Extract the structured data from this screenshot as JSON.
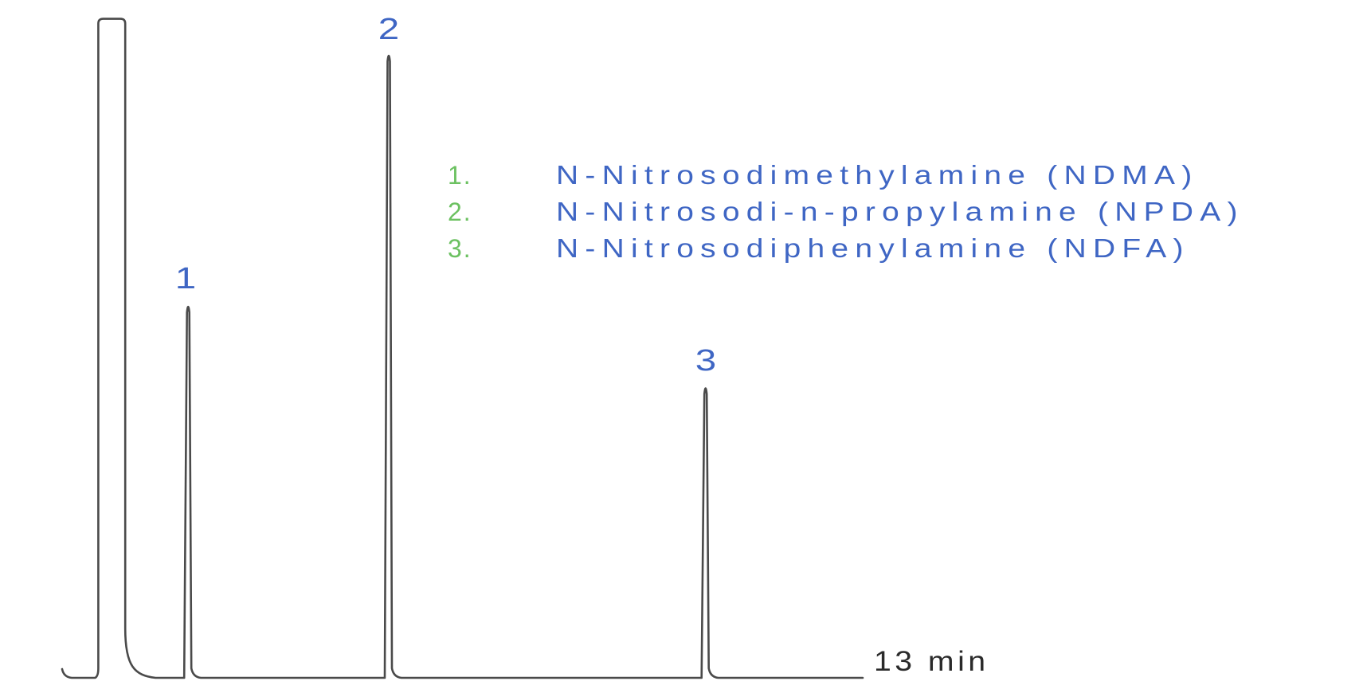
{
  "colors": {
    "trace": "#4a4a4a",
    "peak_label_blue": "#3f66c4",
    "legend_number_green": "#6cc161",
    "legend_text_blue": "#3f66c4",
    "axis_text": "#2a2a2a",
    "background": "#ffffff"
  },
  "axis": {
    "end_label": "13 min"
  },
  "legend": {
    "items": [
      {
        "number": "1.",
        "name": "N-Nitrosodimethylamine (NDMA)"
      },
      {
        "number": "2.",
        "name": "N-Nitrosodi-n-propylamine (NPDA)"
      },
      {
        "number": "3.",
        "name": "N-Nitrosodiphenylamine (NDFA)"
      }
    ]
  },
  "chart_data": {
    "type": "line",
    "subtype": "gc-chromatogram",
    "title": "",
    "xlabel": "13 min",
    "ylabel": "",
    "x_unit": "min",
    "x_range": [
      0,
      13
    ],
    "grid": false,
    "legend_position": "upper-center-right",
    "baseline_rel_height": 0.0,
    "solvent_front": {
      "start_min": 0.5,
      "end_min": 0.94,
      "rel_height": 1.05
    },
    "peaks": [
      {
        "label": "1",
        "compound": "N-Nitrosodimethylamine",
        "abbreviation": "NDMA",
        "retention_min": 1.97,
        "rel_height": 0.6
      },
      {
        "label": "2",
        "compound": "N-Nitrosodi-n-propylamine",
        "abbreviation": "NPDA",
        "retention_min": 5.25,
        "rel_height": 1.0
      },
      {
        "label": "3",
        "compound": "N-Nitrosodiphenylamine",
        "abbreviation": "NDFA",
        "retention_min": 10.43,
        "rel_height": 0.47
      }
    ]
  }
}
